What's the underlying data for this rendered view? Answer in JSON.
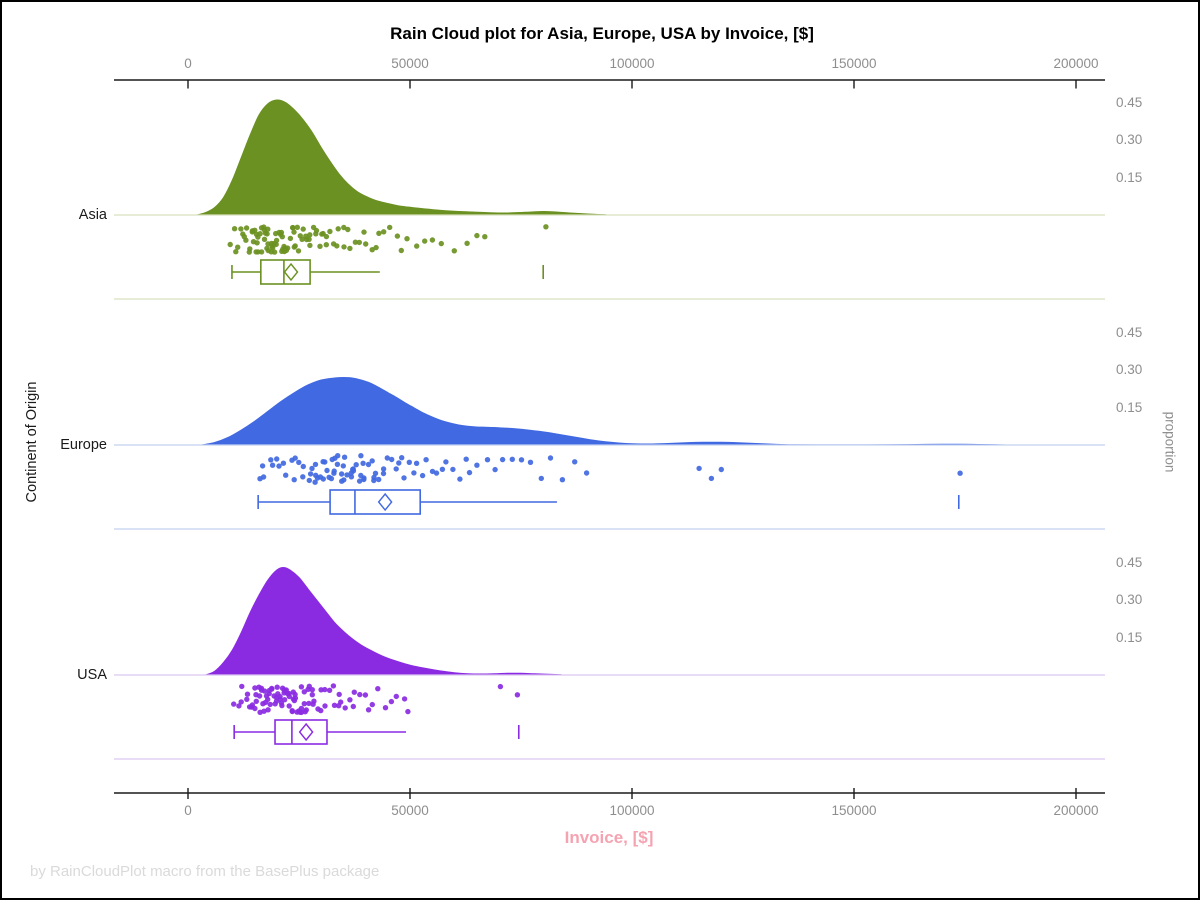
{
  "title": "Rain Cloud plot for Asia, Europe, USA by Invoice, [$]",
  "footer": "by RainCloudPlot macro from the BasePlus package",
  "axes": {
    "x": {
      "label": "Invoice, [$]",
      "ticks": [
        0,
        50000,
        100000,
        150000,
        200000
      ],
      "min": 0,
      "max": 200000
    },
    "y": {
      "label": "Continent of Origin",
      "categories": [
        "Asia",
        "Europe",
        "USA"
      ]
    },
    "right": {
      "label": "proportion",
      "ticks": [
        "0.45",
        "0.30",
        "0.15"
      ]
    }
  },
  "colors": {
    "axis": "#1a1a1a",
    "tick_text": "#8e8e8e",
    "xlabel_pink": "#f5a3b1",
    "footer_gray": "#dadada",
    "asia": "#6B9122",
    "europe": "#4169E1",
    "usa": "#8A2BE2"
  },
  "chart_data": {
    "type": "raincloud",
    "title": "Rain Cloud plot for Asia, Europe, USA by Invoice, [$]",
    "xlabel": "Invoice, [$]",
    "ylabel": "Continent of Origin",
    "right_axis_label": "proportion",
    "x_range": [
      0,
      200000
    ],
    "proportion_ticks": [
      0.45,
      0.3,
      0.15
    ],
    "groups": [
      {
        "name": "Asia",
        "color": "#6B9122",
        "light": "#d8e0be",
        "box": {
          "whisker_low": 9900,
          "q1": 16400,
          "median": 21600,
          "mean": 23200,
          "q3": 27500,
          "whisker_high": 43200,
          "outlier": 80000
        },
        "density": [
          [
            2000,
            0
          ],
          [
            4000,
            0.01
          ],
          [
            6000,
            0.03
          ],
          [
            8000,
            0.07
          ],
          [
            10000,
            0.14
          ],
          [
            12000,
            0.23
          ],
          [
            14000,
            0.32
          ],
          [
            16000,
            0.4
          ],
          [
            18000,
            0.445
          ],
          [
            20000,
            0.46
          ],
          [
            22000,
            0.45
          ],
          [
            24000,
            0.42
          ],
          [
            26000,
            0.38
          ],
          [
            28000,
            0.33
          ],
          [
            30000,
            0.27
          ],
          [
            32000,
            0.215
          ],
          [
            34000,
            0.165
          ],
          [
            36000,
            0.125
          ],
          [
            38000,
            0.095
          ],
          [
            40000,
            0.075
          ],
          [
            42000,
            0.06
          ],
          [
            44000,
            0.05
          ],
          [
            46000,
            0.042
          ],
          [
            48000,
            0.035
          ],
          [
            52000,
            0.027
          ],
          [
            56000,
            0.02
          ],
          [
            60000,
            0.015
          ],
          [
            64000,
            0.012
          ],
          [
            68000,
            0.009
          ],
          [
            72000,
            0.008
          ],
          [
            76000,
            0.011
          ],
          [
            80000,
            0.014
          ],
          [
            83000,
            0.012
          ],
          [
            86000,
            0.008
          ],
          [
            90000,
            0.004
          ],
          [
            94000,
            0.001
          ],
          [
            98000,
            0
          ],
          [
            200000,
            0
          ]
        ],
        "points": [
          9900,
          10400,
          10900,
          11500,
          12000,
          12300,
          12600,
          12900,
          13200,
          13500,
          13800,
          14100,
          14400,
          14700,
          15000,
          15200,
          15400,
          15600,
          15800,
          16000,
          16200,
          16400,
          16600,
          16800,
          17000,
          17200,
          17400,
          17600,
          17800,
          18000,
          18200,
          18400,
          18600,
          18800,
          19000,
          19200,
          19400,
          19600,
          19800,
          20000,
          20200,
          20400,
          20600,
          20800,
          21000,
          21200,
          21400,
          21600,
          21800,
          22000,
          22300,
          22600,
          22900,
          23200,
          23500,
          23800,
          24100,
          24400,
          24700,
          25000,
          25300,
          25600,
          25900,
          26200,
          26600,
          27000,
          27400,
          27800,
          28200,
          28600,
          29000,
          29500,
          30000,
          30500,
          31000,
          31600,
          32200,
          32800,
          33400,
          34000,
          34700,
          35400,
          36100,
          36900,
          37700,
          38500,
          39400,
          40300,
          41300,
          42300,
          43200,
          44300,
          45500,
          46800,
          48200,
          49700,
          51400,
          53200,
          55200,
          57400,
          59800,
          62500,
          65500,
          67300,
          80300
        ]
      },
      {
        "name": "Europe",
        "color": "#4169E1",
        "light": "#c4d1f1",
        "box": {
          "whisker_low": 15800,
          "q1": 32000,
          "median": 37600,
          "mean": 44400,
          "q3": 52300,
          "whisker_high": 83100,
          "outlier": 173600
        },
        "density": [
          [
            3000,
            0
          ],
          [
            6000,
            0.01
          ],
          [
            9000,
            0.03
          ],
          [
            12000,
            0.06
          ],
          [
            15000,
            0.095
          ],
          [
            18000,
            0.135
          ],
          [
            21000,
            0.175
          ],
          [
            24000,
            0.21
          ],
          [
            27000,
            0.24
          ],
          [
            30000,
            0.26
          ],
          [
            33000,
            0.268
          ],
          [
            35000,
            0.27
          ],
          [
            37000,
            0.268
          ],
          [
            39000,
            0.26
          ],
          [
            41000,
            0.248
          ],
          [
            43000,
            0.23
          ],
          [
            45000,
            0.21
          ],
          [
            47000,
            0.19
          ],
          [
            49000,
            0.168
          ],
          [
            51000,
            0.148
          ],
          [
            53000,
            0.128
          ],
          [
            55000,
            0.112
          ],
          [
            57000,
            0.098
          ],
          [
            59000,
            0.088
          ],
          [
            61000,
            0.08
          ],
          [
            63000,
            0.075
          ],
          [
            65000,
            0.072
          ],
          [
            67000,
            0.071
          ],
          [
            69000,
            0.07
          ],
          [
            71000,
            0.068
          ],
          [
            73000,
            0.066
          ],
          [
            75000,
            0.063
          ],
          [
            77000,
            0.059
          ],
          [
            79000,
            0.055
          ],
          [
            81000,
            0.05
          ],
          [
            83000,
            0.044
          ],
          [
            85000,
            0.038
          ],
          [
            87000,
            0.032
          ],
          [
            89000,
            0.026
          ],
          [
            91000,
            0.02
          ],
          [
            94000,
            0.013
          ],
          [
            97000,
            0.008
          ],
          [
            100000,
            0.005
          ],
          [
            104000,
            0.004
          ],
          [
            108000,
            0.006
          ],
          [
            112000,
            0.009
          ],
          [
            116000,
            0.011
          ],
          [
            120000,
            0.011
          ],
          [
            124000,
            0.009
          ],
          [
            128000,
            0.006
          ],
          [
            132000,
            0.003
          ],
          [
            136000,
            0.001
          ],
          [
            142000,
            0.0005
          ],
          [
            150000,
            0.0005
          ],
          [
            158000,
            0.001
          ],
          [
            164000,
            0.002
          ],
          [
            170000,
            0.003
          ],
          [
            174000,
            0.003
          ],
          [
            178000,
            0.002
          ],
          [
            182000,
            0.001
          ],
          [
            186000,
            0
          ],
          [
            200000,
            0
          ]
        ],
        "points": [
          15800,
          16600,
          17400,
          18200,
          19000,
          19800,
          20600,
          21400,
          22200,
          23000,
          23700,
          24400,
          25100,
          25800,
          26400,
          27000,
          27600,
          28200,
          28800,
          29400,
          30000,
          30500,
          31000,
          31500,
          32000,
          32500,
          33000,
          33500,
          34000,
          34500,
          35000,
          35500,
          36000,
          36500,
          37000,
          37500,
          38000,
          38500,
          39000,
          39500,
          40000,
          40600,
          41200,
          41800,
          42400,
          43000,
          43700,
          44400,
          45100,
          45800,
          46500,
          47300,
          48100,
          48900,
          49800,
          50700,
          51600,
          52600,
          53600,
          54700,
          55800,
          57000,
          58200,
          59500,
          60900,
          62300,
          63800,
          65400,
          67100,
          68900,
          70800,
          72800,
          74900,
          77100,
          79400,
          81900,
          84500,
          87200,
          89500,
          29200,
          31200,
          33200,
          35200,
          37200,
          39200,
          41500,
          30800,
          32800,
          34800,
          36800,
          38800,
          28500,
          115200,
          117800,
          120400,
          174000
        ]
      },
      {
        "name": "USA",
        "color": "#8A2BE2",
        "light": "#dcc6f0",
        "box": {
          "whisker_low": 10400,
          "q1": 19600,
          "median": 23400,
          "mean": 26600,
          "q3": 31300,
          "whisker_high": 49100,
          "outlier": 74500
        },
        "density": [
          [
            4000,
            0
          ],
          [
            6000,
            0.015
          ],
          [
            8000,
            0.05
          ],
          [
            10000,
            0.1
          ],
          [
            12000,
            0.17
          ],
          [
            14000,
            0.25
          ],
          [
            16000,
            0.32
          ],
          [
            18000,
            0.38
          ],
          [
            20000,
            0.42
          ],
          [
            21500,
            0.43
          ],
          [
            23000,
            0.42
          ],
          [
            25000,
            0.39
          ],
          [
            27000,
            0.345
          ],
          [
            29000,
            0.3
          ],
          [
            31000,
            0.255
          ],
          [
            33000,
            0.21
          ],
          [
            35000,
            0.175
          ],
          [
            37000,
            0.145
          ],
          [
            39000,
            0.12
          ],
          [
            41000,
            0.1
          ],
          [
            43000,
            0.082
          ],
          [
            45000,
            0.067
          ],
          [
            47000,
            0.055
          ],
          [
            49000,
            0.044
          ],
          [
            51000,
            0.035
          ],
          [
            54000,
            0.025
          ],
          [
            57000,
            0.016
          ],
          [
            60000,
            0.009
          ],
          [
            63000,
            0.005
          ],
          [
            66000,
            0.004
          ],
          [
            69000,
            0.005
          ],
          [
            72000,
            0.007
          ],
          [
            75000,
            0.007
          ],
          [
            78000,
            0.005
          ],
          [
            81000,
            0.003
          ],
          [
            84000,
            0.001
          ],
          [
            87000,
            0
          ],
          [
            200000,
            0
          ]
        ],
        "points": [
          10400,
          11100,
          11700,
          12300,
          12800,
          13300,
          13700,
          14100,
          14500,
          14900,
          15300,
          15600,
          15900,
          16200,
          16500,
          16800,
          17100,
          17400,
          17700,
          18000,
          18300,
          18600,
          18900,
          19200,
          19500,
          19800,
          20100,
          20400,
          20700,
          21000,
          21300,
          21600,
          21900,
          22200,
          22500,
          22800,
          23100,
          23400,
          23700,
          24000,
          24300,
          24600,
          24900,
          25200,
          25500,
          25800,
          26100,
          26400,
          26800,
          27200,
          27600,
          28000,
          28400,
          28800,
          29200,
          29700,
          30200,
          30700,
          31200,
          31700,
          32300,
          32900,
          33500,
          34100,
          34800,
          35500,
          36200,
          37000,
          37800,
          38700,
          39600,
          40600,
          41700,
          42900,
          44200,
          45600,
          47100,
          48700,
          49100,
          16100,
          17300,
          18500,
          19700,
          20900,
          22100,
          23300,
          24500,
          25700,
          26900,
          28100,
          15500,
          16700,
          17900,
          19100,
          20300,
          21500,
          22700,
          23900,
          25100,
          70600,
          74300
        ]
      }
    ]
  }
}
